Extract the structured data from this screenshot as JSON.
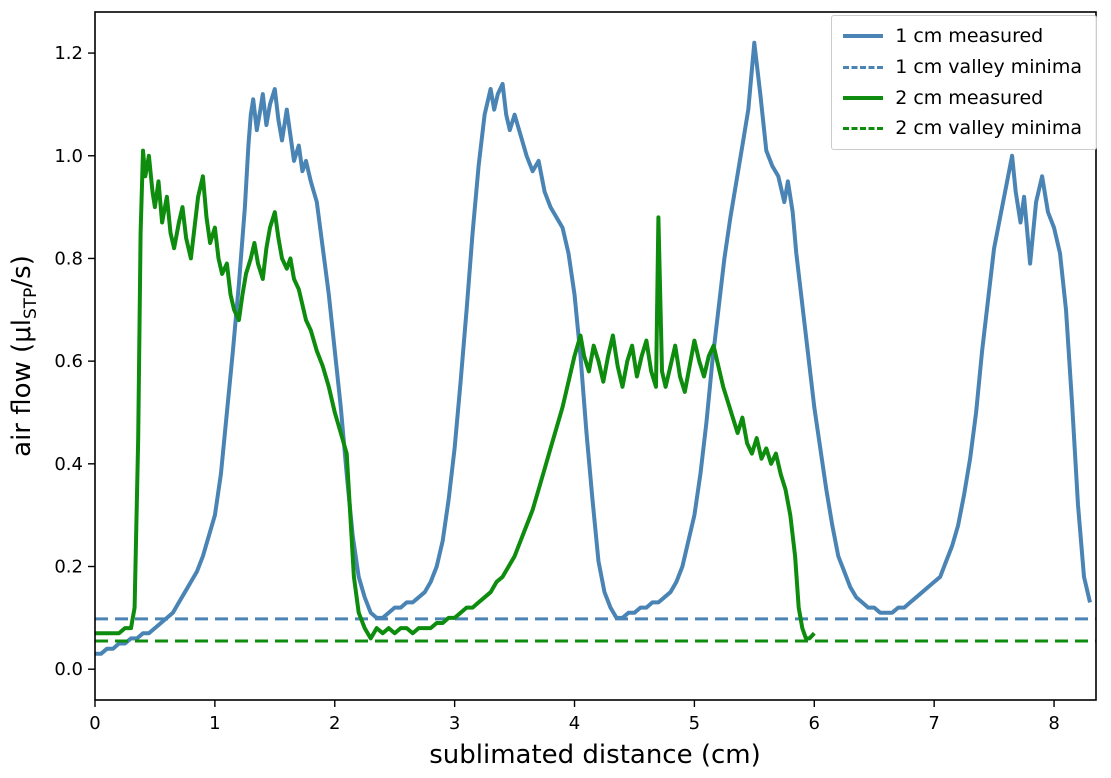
{
  "chart_data": {
    "type": "line",
    "title": "",
    "xlabel": "sublimated distance (cm)",
    "ylabel": "air flow (μl_STP/s)",
    "ylabel_rich": {
      "pre": "air flow (μl",
      "sub": "STP",
      "post": "/s)"
    },
    "xlim": [
      0,
      8.35
    ],
    "ylim": [
      -0.06,
      1.28
    ],
    "xticks": [
      0,
      1,
      2,
      3,
      4,
      5,
      6,
      7,
      8
    ],
    "yticks": [
      0.0,
      0.2,
      0.4,
      0.6,
      0.8,
      1.0,
      1.2
    ],
    "grid": false,
    "legend_position": "upper right",
    "colors": {
      "blue": "#4a84b4",
      "green": "#0e8c0e",
      "axis": "#000000"
    },
    "series": [
      {
        "name": "1 cm measured",
        "color": "#4a84b4",
        "style": "solid",
        "width": 4,
        "x": [
          0,
          0.05,
          0.1,
          0.15,
          0.2,
          0.25,
          0.3,
          0.35,
          0.4,
          0.45,
          0.5,
          0.55,
          0.6,
          0.65,
          0.7,
          0.75,
          0.8,
          0.85,
          0.9,
          0.95,
          1.0,
          1.05,
          1.1,
          1.15,
          1.2,
          1.25,
          1.28,
          1.3,
          1.32,
          1.35,
          1.38,
          1.4,
          1.43,
          1.46,
          1.5,
          1.53,
          1.56,
          1.6,
          1.63,
          1.66,
          1.7,
          1.73,
          1.76,
          1.8,
          1.85,
          1.9,
          1.95,
          2.0,
          2.05,
          2.1,
          2.15,
          2.2,
          2.25,
          2.3,
          2.35,
          2.4,
          2.45,
          2.5,
          2.55,
          2.6,
          2.65,
          2.7,
          2.75,
          2.8,
          2.85,
          2.9,
          2.95,
          3.0,
          3.05,
          3.1,
          3.15,
          3.2,
          3.25,
          3.3,
          3.33,
          3.36,
          3.4,
          3.43,
          3.46,
          3.5,
          3.55,
          3.6,
          3.65,
          3.7,
          3.75,
          3.8,
          3.85,
          3.9,
          3.95,
          4.0,
          4.05,
          4.1,
          4.15,
          4.2,
          4.25,
          4.3,
          4.35,
          4.4,
          4.45,
          4.5,
          4.55,
          4.6,
          4.65,
          4.7,
          4.75,
          4.8,
          4.85,
          4.9,
          4.95,
          5.0,
          5.05,
          5.1,
          5.15,
          5.2,
          5.25,
          5.3,
          5.35,
          5.4,
          5.45,
          5.5,
          5.55,
          5.6,
          5.65,
          5.7,
          5.75,
          5.78,
          5.82,
          5.85,
          5.9,
          5.95,
          6.0,
          6.05,
          6.1,
          6.15,
          6.2,
          6.25,
          6.3,
          6.35,
          6.4,
          6.45,
          6.5,
          6.55,
          6.6,
          6.65,
          6.7,
          6.75,
          6.8,
          6.85,
          6.9,
          6.95,
          7.0,
          7.05,
          7.1,
          7.15,
          7.2,
          7.25,
          7.3,
          7.35,
          7.4,
          7.45,
          7.5,
          7.55,
          7.6,
          7.65,
          7.68,
          7.72,
          7.75,
          7.8,
          7.85,
          7.9,
          7.95,
          8.0,
          8.05,
          8.1,
          8.15,
          8.2,
          8.25,
          8.3
        ],
        "y": [
          0.03,
          0.03,
          0.04,
          0.04,
          0.05,
          0.05,
          0.06,
          0.06,
          0.07,
          0.07,
          0.08,
          0.09,
          0.1,
          0.11,
          0.13,
          0.15,
          0.17,
          0.19,
          0.22,
          0.26,
          0.3,
          0.38,
          0.5,
          0.62,
          0.75,
          0.9,
          1.02,
          1.08,
          1.11,
          1.05,
          1.09,
          1.12,
          1.06,
          1.1,
          1.13,
          1.07,
          1.03,
          1.09,
          1.04,
          0.99,
          1.02,
          0.97,
          0.99,
          0.95,
          0.91,
          0.82,
          0.73,
          0.62,
          0.51,
          0.38,
          0.26,
          0.18,
          0.14,
          0.11,
          0.1,
          0.1,
          0.11,
          0.12,
          0.12,
          0.13,
          0.13,
          0.14,
          0.15,
          0.17,
          0.2,
          0.25,
          0.33,
          0.43,
          0.56,
          0.7,
          0.85,
          0.98,
          1.08,
          1.13,
          1.09,
          1.12,
          1.14,
          1.08,
          1.05,
          1.08,
          1.04,
          1.0,
          0.97,
          0.99,
          0.93,
          0.9,
          0.88,
          0.86,
          0.81,
          0.73,
          0.61,
          0.46,
          0.33,
          0.21,
          0.15,
          0.12,
          0.1,
          0.1,
          0.11,
          0.11,
          0.12,
          0.12,
          0.13,
          0.13,
          0.14,
          0.15,
          0.17,
          0.2,
          0.25,
          0.3,
          0.38,
          0.48,
          0.6,
          0.7,
          0.8,
          0.88,
          0.95,
          1.02,
          1.09,
          1.22,
          1.12,
          1.01,
          0.98,
          0.96,
          0.91,
          0.95,
          0.89,
          0.81,
          0.71,
          0.61,
          0.51,
          0.43,
          0.35,
          0.28,
          0.22,
          0.19,
          0.16,
          0.14,
          0.13,
          0.12,
          0.12,
          0.11,
          0.11,
          0.11,
          0.12,
          0.12,
          0.13,
          0.14,
          0.15,
          0.16,
          0.17,
          0.18,
          0.21,
          0.24,
          0.28,
          0.34,
          0.41,
          0.5,
          0.62,
          0.72,
          0.82,
          0.88,
          0.94,
          1.0,
          0.93,
          0.87,
          0.92,
          0.79,
          0.91,
          0.96,
          0.89,
          0.86,
          0.81,
          0.7,
          0.52,
          0.32,
          0.18,
          0.13
        ]
      },
      {
        "name": "1 cm valley minima",
        "color": "#4a84b4",
        "style": "dashed",
        "width": 3,
        "x": [
          0,
          8.35
        ],
        "y": [
          0.098,
          0.098
        ]
      },
      {
        "name": "2 cm measured",
        "color": "#0e8c0e",
        "style": "solid",
        "width": 4,
        "x": [
          0,
          0.05,
          0.1,
          0.15,
          0.2,
          0.25,
          0.3,
          0.33,
          0.36,
          0.38,
          0.4,
          0.42,
          0.45,
          0.48,
          0.5,
          0.53,
          0.56,
          0.6,
          0.63,
          0.66,
          0.7,
          0.73,
          0.76,
          0.8,
          0.83,
          0.86,
          0.9,
          0.93,
          0.96,
          1.0,
          1.03,
          1.06,
          1.1,
          1.13,
          1.16,
          1.2,
          1.23,
          1.26,
          1.3,
          1.33,
          1.36,
          1.4,
          1.43,
          1.46,
          1.5,
          1.53,
          1.56,
          1.6,
          1.63,
          1.66,
          1.7,
          1.73,
          1.76,
          1.8,
          1.85,
          1.9,
          1.95,
          2.0,
          2.05,
          2.1,
          2.13,
          2.16,
          2.2,
          2.25,
          2.3,
          2.35,
          2.4,
          2.45,
          2.5,
          2.55,
          2.6,
          2.65,
          2.7,
          2.75,
          2.8,
          2.85,
          2.9,
          2.95,
          3.0,
          3.05,
          3.1,
          3.15,
          3.2,
          3.25,
          3.3,
          3.35,
          3.4,
          3.45,
          3.5,
          3.55,
          3.6,
          3.65,
          3.7,
          3.75,
          3.8,
          3.85,
          3.9,
          3.95,
          4.0,
          4.05,
          4.08,
          4.12,
          4.16,
          4.2,
          4.24,
          4.28,
          4.32,
          4.36,
          4.4,
          4.44,
          4.48,
          4.52,
          4.56,
          4.6,
          4.64,
          4.68,
          4.7,
          4.73,
          4.76,
          4.8,
          4.84,
          4.88,
          4.92,
          4.96,
          5.0,
          5.04,
          5.08,
          5.12,
          5.16,
          5.2,
          5.24,
          5.28,
          5.32,
          5.36,
          5.4,
          5.44,
          5.48,
          5.52,
          5.56,
          5.6,
          5.64,
          5.68,
          5.72,
          5.76,
          5.8,
          5.84,
          5.87,
          5.9,
          5.93,
          5.96,
          6.0
        ],
        "y": [
          0.07,
          0.07,
          0.07,
          0.07,
          0.07,
          0.08,
          0.08,
          0.12,
          0.45,
          0.85,
          1.01,
          0.96,
          1.0,
          0.93,
          0.9,
          0.95,
          0.87,
          0.92,
          0.85,
          0.82,
          0.87,
          0.9,
          0.84,
          0.8,
          0.86,
          0.92,
          0.96,
          0.88,
          0.83,
          0.86,
          0.8,
          0.77,
          0.79,
          0.73,
          0.7,
          0.68,
          0.73,
          0.77,
          0.8,
          0.83,
          0.79,
          0.76,
          0.82,
          0.86,
          0.89,
          0.84,
          0.8,
          0.78,
          0.8,
          0.76,
          0.74,
          0.71,
          0.68,
          0.66,
          0.62,
          0.59,
          0.55,
          0.5,
          0.46,
          0.42,
          0.3,
          0.18,
          0.11,
          0.08,
          0.06,
          0.08,
          0.07,
          0.08,
          0.07,
          0.08,
          0.08,
          0.07,
          0.08,
          0.08,
          0.08,
          0.09,
          0.09,
          0.1,
          0.1,
          0.11,
          0.12,
          0.12,
          0.13,
          0.14,
          0.15,
          0.17,
          0.18,
          0.2,
          0.22,
          0.25,
          0.28,
          0.31,
          0.35,
          0.39,
          0.43,
          0.47,
          0.51,
          0.56,
          0.61,
          0.65,
          0.61,
          0.58,
          0.63,
          0.6,
          0.56,
          0.61,
          0.65,
          0.59,
          0.55,
          0.6,
          0.63,
          0.57,
          0.61,
          0.64,
          0.58,
          0.55,
          0.88,
          0.58,
          0.55,
          0.59,
          0.63,
          0.57,
          0.54,
          0.59,
          0.64,
          0.6,
          0.57,
          0.61,
          0.63,
          0.59,
          0.55,
          0.52,
          0.49,
          0.46,
          0.49,
          0.44,
          0.42,
          0.45,
          0.41,
          0.43,
          0.4,
          0.42,
          0.38,
          0.35,
          0.3,
          0.22,
          0.12,
          0.08,
          0.06,
          0.06,
          0.07
        ]
      },
      {
        "name": "2 cm valley minima",
        "color": "#0e8c0e",
        "style": "dashed",
        "width": 3,
        "x": [
          0,
          8.35
        ],
        "y": [
          0.055,
          0.055
        ]
      }
    ]
  }
}
